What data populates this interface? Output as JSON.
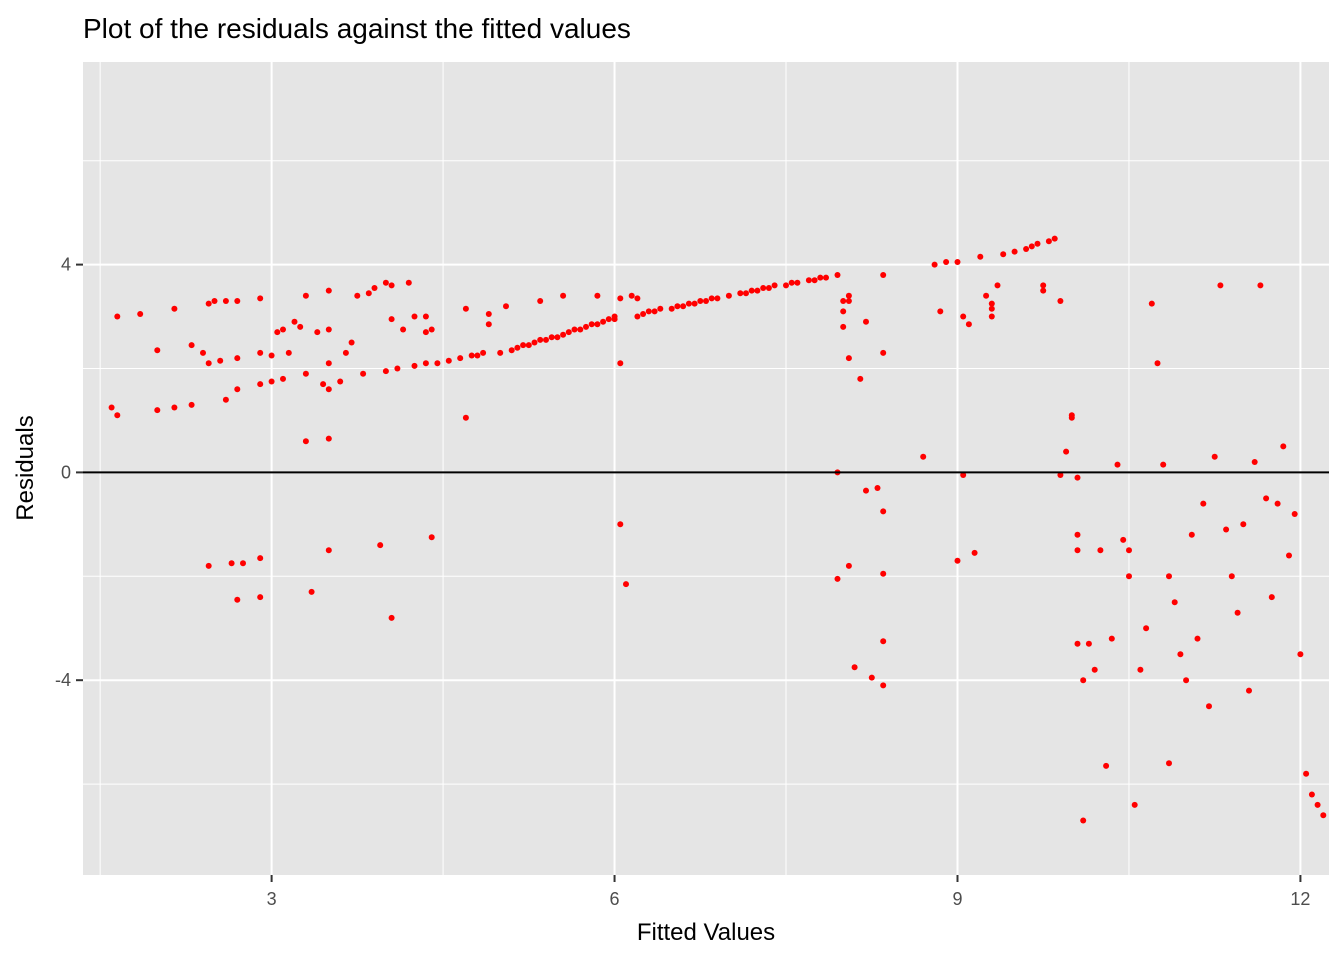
{
  "chart_data": {
    "type": "scatter",
    "title": "Plot of the residuals against the fitted values",
    "xlabel": "Fitted Values",
    "ylabel": "Residuals",
    "xlim": [
      1.35,
      12.25
    ],
    "ylim": [
      -7.75,
      7.9
    ],
    "x_ticks": [
      3,
      6,
      9,
      12
    ],
    "y_ticks": [
      -4,
      0,
      4
    ],
    "x_tick_labels": [
      "3",
      "6",
      "9",
      "12"
    ],
    "y_tick_labels": [
      "-4",
      "0",
      "4"
    ],
    "hline": 0,
    "grid": true,
    "legend": "none",
    "point_color": "#ff0000",
    "panel_color": "#e5e5e5",
    "grid_color": "#ffffff",
    "series": [
      {
        "points": [
          [
            1.6,
            1.25
          ],
          [
            1.65,
            1.1
          ],
          [
            1.65,
            3.0
          ],
          [
            1.85,
            3.05
          ],
          [
            2.0,
            2.35
          ],
          [
            2.0,
            1.2
          ],
          [
            2.15,
            1.25
          ],
          [
            2.15,
            3.15
          ],
          [
            2.3,
            1.3
          ],
          [
            2.3,
            2.45
          ],
          [
            2.4,
            2.3
          ],
          [
            2.45,
            3.25
          ],
          [
            2.45,
            2.1
          ],
          [
            2.45,
            -1.8
          ],
          [
            2.5,
            3.3
          ],
          [
            2.55,
            2.15
          ],
          [
            2.6,
            1.4
          ],
          [
            2.6,
            3.3
          ],
          [
            2.65,
            -1.75
          ],
          [
            2.7,
            3.3
          ],
          [
            2.7,
            2.2
          ],
          [
            2.7,
            1.6
          ],
          [
            2.75,
            -1.75
          ],
          [
            2.7,
            -2.45
          ],
          [
            2.9,
            3.35
          ],
          [
            2.9,
            2.3
          ],
          [
            2.9,
            1.7
          ],
          [
            2.9,
            -1.65
          ],
          [
            2.9,
            -2.4
          ],
          [
            3.0,
            1.75
          ],
          [
            3.0,
            2.25
          ],
          [
            3.05,
            2.7
          ],
          [
            3.1,
            2.75
          ],
          [
            3.1,
            1.8
          ],
          [
            3.15,
            2.3
          ],
          [
            3.2,
            2.9
          ],
          [
            3.25,
            2.8
          ],
          [
            3.3,
            1.9
          ],
          [
            3.3,
            3.4
          ],
          [
            3.3,
            0.6
          ],
          [
            3.35,
            -2.3
          ],
          [
            3.4,
            2.7
          ],
          [
            3.45,
            1.7
          ],
          [
            3.5,
            2.75
          ],
          [
            3.5,
            3.5
          ],
          [
            3.5,
            2.1
          ],
          [
            3.5,
            1.6
          ],
          [
            3.5,
            0.65
          ],
          [
            3.5,
            -1.5
          ],
          [
            3.6,
            1.75
          ],
          [
            3.65,
            2.3
          ],
          [
            3.7,
            2.5
          ],
          [
            3.75,
            3.4
          ],
          [
            3.8,
            1.9
          ],
          [
            3.85,
            3.45
          ],
          [
            3.9,
            3.55
          ],
          [
            3.95,
            -1.4
          ],
          [
            4.0,
            3.65
          ],
          [
            4.05,
            3.6
          ],
          [
            4.0,
            1.95
          ],
          [
            4.05,
            2.95
          ],
          [
            4.05,
            -2.8
          ],
          [
            4.1,
            2.0
          ],
          [
            4.15,
            2.75
          ],
          [
            4.2,
            3.65
          ],
          [
            4.25,
            3.0
          ],
          [
            4.25,
            2.05
          ],
          [
            4.35,
            2.7
          ],
          [
            4.35,
            3.0
          ],
          [
            4.35,
            2.1
          ],
          [
            4.4,
            2.75
          ],
          [
            4.4,
            -1.25
          ],
          [
            4.45,
            2.1
          ],
          [
            4.55,
            2.15
          ],
          [
            4.65,
            2.2
          ],
          [
            4.7,
            3.15
          ],
          [
            4.7,
            1.05
          ],
          [
            4.75,
            2.25
          ],
          [
            4.8,
            2.25
          ],
          [
            4.85,
            2.3
          ],
          [
            4.9,
            3.05
          ],
          [
            4.9,
            2.85
          ],
          [
            5.0,
            2.3
          ],
          [
            5.05,
            3.2
          ],
          [
            5.1,
            2.35
          ],
          [
            5.15,
            2.4
          ],
          [
            5.2,
            2.45
          ],
          [
            5.25,
            2.45
          ],
          [
            5.3,
            2.5
          ],
          [
            5.35,
            2.55
          ],
          [
            5.35,
            3.3
          ],
          [
            5.4,
            2.55
          ],
          [
            5.45,
            2.6
          ],
          [
            5.5,
            2.6
          ],
          [
            5.55,
            2.65
          ],
          [
            5.55,
            3.4
          ],
          [
            5.6,
            2.7
          ],
          [
            5.65,
            2.75
          ],
          [
            5.7,
            2.75
          ],
          [
            5.75,
            2.8
          ],
          [
            5.8,
            2.85
          ],
          [
            5.85,
            2.85
          ],
          [
            5.85,
            3.4
          ],
          [
            5.9,
            2.9
          ],
          [
            5.95,
            2.95
          ],
          [
            6.0,
            2.95
          ],
          [
            6.0,
            3.0
          ],
          [
            6.05,
            3.35
          ],
          [
            6.05,
            2.1
          ],
          [
            6.05,
            -1.0
          ],
          [
            6.1,
            -2.15
          ],
          [
            6.15,
            3.4
          ],
          [
            6.2,
            3.0
          ],
          [
            6.2,
            3.35
          ],
          [
            6.25,
            3.05
          ],
          [
            6.3,
            3.1
          ],
          [
            6.35,
            3.1
          ],
          [
            6.4,
            3.15
          ],
          [
            6.5,
            3.15
          ],
          [
            6.55,
            3.2
          ],
          [
            6.6,
            3.2
          ],
          [
            6.65,
            3.25
          ],
          [
            6.7,
            3.25
          ],
          [
            6.75,
            3.3
          ],
          [
            6.8,
            3.3
          ],
          [
            6.85,
            3.35
          ],
          [
            6.9,
            3.35
          ],
          [
            7.0,
            3.4
          ],
          [
            7.1,
            3.45
          ],
          [
            7.15,
            3.45
          ],
          [
            7.2,
            3.5
          ],
          [
            7.25,
            3.5
          ],
          [
            7.3,
            3.55
          ],
          [
            7.35,
            3.55
          ],
          [
            7.4,
            3.6
          ],
          [
            7.5,
            3.6
          ],
          [
            7.55,
            3.65
          ],
          [
            7.6,
            3.65
          ],
          [
            7.7,
            3.7
          ],
          [
            7.75,
            3.7
          ],
          [
            7.8,
            3.75
          ],
          [
            7.85,
            3.75
          ],
          [
            7.95,
            3.8
          ],
          [
            7.95,
            0.0
          ],
          [
            7.95,
            -2.05
          ],
          [
            8.0,
            3.3
          ],
          [
            8.0,
            3.1
          ],
          [
            8.0,
            2.8
          ],
          [
            8.05,
            2.2
          ],
          [
            8.05,
            3.4
          ],
          [
            8.05,
            3.3
          ],
          [
            8.05,
            -1.8
          ],
          [
            8.1,
            -3.75
          ],
          [
            8.15,
            1.8
          ],
          [
            8.2,
            2.9
          ],
          [
            8.2,
            -0.35
          ],
          [
            8.25,
            -3.95
          ],
          [
            8.3,
            -0.3
          ],
          [
            8.35,
            3.8
          ],
          [
            8.35,
            2.3
          ],
          [
            8.35,
            -0.75
          ],
          [
            8.35,
            -1.95
          ],
          [
            8.35,
            -3.25
          ],
          [
            8.35,
            -4.1
          ],
          [
            8.7,
            0.3
          ],
          [
            8.8,
            4.0
          ],
          [
            8.85,
            3.1
          ],
          [
            8.9,
            4.05
          ],
          [
            9.0,
            4.05
          ],
          [
            9.05,
            -0.05
          ],
          [
            9.0,
            -1.7
          ],
          [
            9.05,
            3.0
          ],
          [
            9.1,
            2.85
          ],
          [
            9.15,
            -1.55
          ],
          [
            9.2,
            4.15
          ],
          [
            9.25,
            3.4
          ],
          [
            9.3,
            3.0
          ],
          [
            9.3,
            3.25
          ],
          [
            9.3,
            3.15
          ],
          [
            9.35,
            3.6
          ],
          [
            9.4,
            4.2
          ],
          [
            9.5,
            4.25
          ],
          [
            9.6,
            4.3
          ],
          [
            9.65,
            4.35
          ],
          [
            9.7,
            4.4
          ],
          [
            9.75,
            3.6
          ],
          [
            9.75,
            3.5
          ],
          [
            9.8,
            4.45
          ],
          [
            9.85,
            4.5
          ],
          [
            9.9,
            3.3
          ],
          [
            9.9,
            -0.05
          ],
          [
            9.95,
            0.4
          ],
          [
            10.0,
            1.05
          ],
          [
            10.0,
            1.1
          ],
          [
            10.05,
            -0.1
          ],
          [
            10.05,
            -1.2
          ],
          [
            10.05,
            -1.5
          ],
          [
            10.05,
            -3.3
          ],
          [
            10.1,
            -4.0
          ],
          [
            10.1,
            -6.7
          ],
          [
            10.15,
            -3.3
          ],
          [
            10.2,
            -3.8
          ],
          [
            10.25,
            -1.5
          ],
          [
            10.3,
            -5.65
          ],
          [
            10.35,
            -3.2
          ],
          [
            10.4,
            0.15
          ],
          [
            10.45,
            -1.3
          ],
          [
            10.5,
            -1.5
          ],
          [
            10.5,
            -2.0
          ],
          [
            10.55,
            -6.4
          ],
          [
            10.6,
            -3.8
          ],
          [
            10.65,
            -3.0
          ],
          [
            10.7,
            3.25
          ],
          [
            10.75,
            2.1
          ],
          [
            10.8,
            0.15
          ],
          [
            10.85,
            -5.6
          ],
          [
            10.85,
            -2.0
          ],
          [
            10.9,
            -2.5
          ],
          [
            10.95,
            -3.5
          ],
          [
            11.0,
            -4.0
          ],
          [
            11.05,
            -1.2
          ],
          [
            11.1,
            -3.2
          ],
          [
            11.15,
            -0.6
          ],
          [
            11.2,
            -4.5
          ],
          [
            11.25,
            0.3
          ],
          [
            11.3,
            3.6
          ],
          [
            11.35,
            -1.1
          ],
          [
            11.4,
            -2.0
          ],
          [
            11.45,
            -2.7
          ],
          [
            11.5,
            -1.0
          ],
          [
            11.55,
            -4.2
          ],
          [
            11.6,
            0.2
          ],
          [
            11.65,
            3.6
          ],
          [
            11.7,
            -0.5
          ],
          [
            11.75,
            -2.4
          ],
          [
            11.8,
            -0.6
          ],
          [
            11.85,
            0.5
          ],
          [
            11.9,
            -1.6
          ],
          [
            11.95,
            -0.8
          ],
          [
            12.0,
            -3.5
          ],
          [
            12.05,
            -5.8
          ],
          [
            12.1,
            -6.2
          ],
          [
            12.15,
            -6.4
          ],
          [
            12.2,
            -6.6
          ]
        ]
      }
    ]
  }
}
